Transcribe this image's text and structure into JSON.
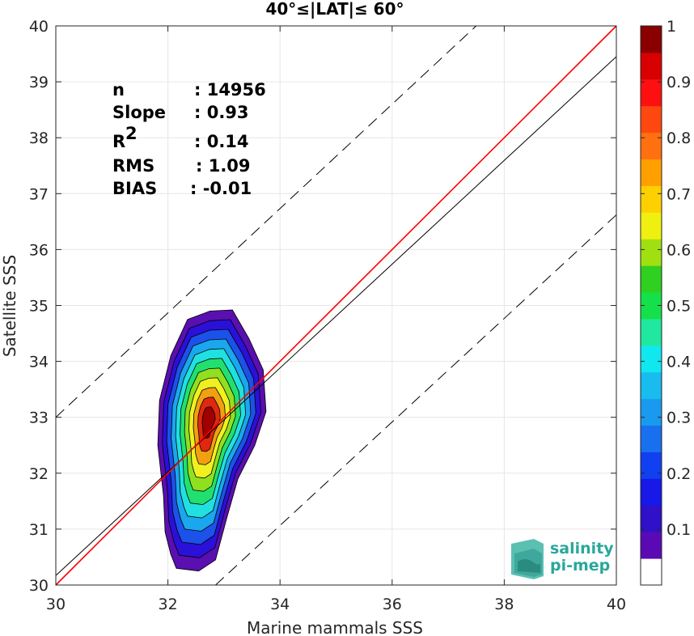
{
  "chart_data": {
    "type": "contour",
    "title": "40°≤|LAT|≤ 60°",
    "xlabel": "Marine mammals SSS",
    "ylabel": "Satellite SSS",
    "xlim": [
      30,
      40
    ],
    "ylim": [
      30,
      40
    ],
    "xticks": [
      30,
      32,
      34,
      36,
      38,
      40
    ],
    "yticks": [
      30,
      31,
      32,
      33,
      34,
      35,
      36,
      37,
      38,
      39,
      40
    ],
    "grid": true,
    "stats": [
      {
        "label": "n",
        "value": ": 14956"
      },
      {
        "label": "Slope",
        "value": ": 0.93"
      },
      {
        "label": "R",
        "sup": "2",
        "value": ": 0.14"
      },
      {
        "label": "RMS",
        "value": ": 1.09"
      },
      {
        "label": "BIAS",
        "value": ": -0.01"
      }
    ],
    "lines": {
      "identity": {
        "slope": 1,
        "intercept": 0,
        "color": "#ff0000"
      },
      "fit": {
        "slope": 0.93,
        "x0": 30,
        "y0": 30.17,
        "x1": 40,
        "y1": 39.45,
        "color": "#000000"
      },
      "upper_bound": {
        "x0": 30,
        "y0": 33.0,
        "x1": 37.5,
        "y1": 40.0,
        "style": "dashed"
      },
      "lower_bound": {
        "x0": 32.85,
        "y0": 30.0,
        "x1": 40,
        "y1": 36.62,
        "style": "dashed"
      }
    },
    "density_peak": {
      "x": 32.72,
      "y": 32.95
    },
    "contour_levels": [
      0.05,
      0.1,
      0.2,
      0.3,
      0.4,
      0.5,
      0.6,
      0.7,
      0.8,
      0.9
    ],
    "contour_colors": [
      "#5a0fb0",
      "#2a10d8",
      "#1c52ea",
      "#1aa7ee",
      "#20e0e0",
      "#22e070",
      "#90e020",
      "#f0f020",
      "#f0a010",
      "#e02810",
      "#a00000"
    ],
    "colorbar": {
      "ticks": [
        0.1,
        0.2,
        0.3,
        0.4,
        0.5,
        0.6,
        0.7,
        0.8,
        0.9,
        1
      ],
      "tick_labels": [
        "0.1",
        "0.2",
        "0.3",
        "0.4",
        "0.5",
        "0.6",
        "0.7",
        "0.8",
        "0.9",
        "1"
      ],
      "colors": [
        "#ffffff",
        "#5a0ab4",
        "#3010c8",
        "#1818e8",
        "#1040f0",
        "#1870ee",
        "#1a9aee",
        "#18bcee",
        "#10e8f0",
        "#20e8a0",
        "#14e04a",
        "#30d020",
        "#a0e010",
        "#f0f010",
        "#ffd000",
        "#ffa000",
        "#ff7010",
        "#ff4810",
        "#ff1010",
        "#d80000",
        "#8a0000"
      ]
    }
  },
  "logo": {
    "line1": "salinity",
    "line2": "pi-mep"
  }
}
